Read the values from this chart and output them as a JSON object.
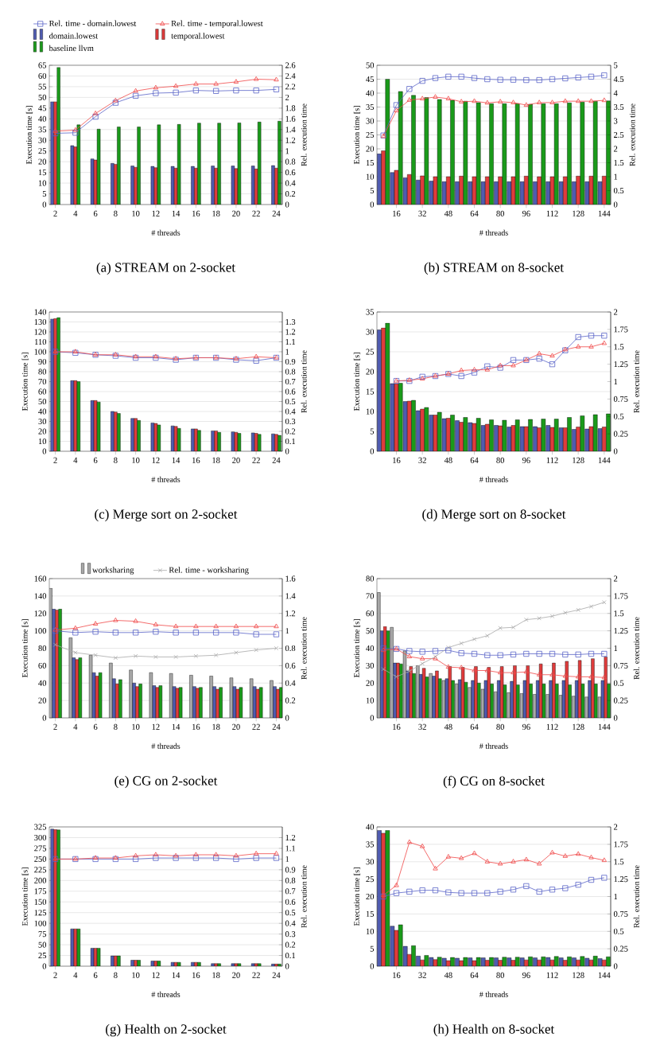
{
  "chart_data": [
    {
      "type": "bar",
      "title": "(a) STREAM on 2-socket",
      "xlabel": "# threads",
      "ylabel": "Execution time [s]",
      "y2label": "Rel. execution time",
      "legend": "top left",
      "grid": "y",
      "x": [
        2,
        4,
        6,
        8,
        10,
        12,
        14,
        16,
        18,
        20,
        22,
        24
      ],
      "xlim": [
        1.4,
        24.6
      ],
      "xticks": [
        2,
        4,
        6,
        8,
        10,
        12,
        14,
        16,
        18,
        20,
        22,
        24
      ],
      "ylim": [
        0,
        65
      ],
      "yticks": [
        0,
        5,
        10,
        15,
        20,
        25,
        30,
        35,
        40,
        45,
        50,
        55,
        60,
        65
      ],
      "y2lim": [
        0,
        2.6
      ],
      "y2ticks": [
        0,
        0.2,
        0.4,
        0.6,
        0.8,
        1,
        1.2,
        1.4,
        1.6,
        1.8,
        2,
        2.2,
        2.4,
        2.6
      ],
      "series": [
        {
          "name": "Rel. time - domain.lowest",
          "type": "line",
          "axis": "y2",
          "marker": "square",
          "color": "#5a64c8",
          "values": [
            1.33,
            1.34,
            1.64,
            1.9,
            2.03,
            2.08,
            2.09,
            2.13,
            2.12,
            2.13,
            2.13,
            2.15
          ]
        },
        {
          "name": "Rel. time - temporal.lowest",
          "type": "line",
          "axis": "y2",
          "marker": "triangle",
          "color": "#f04848",
          "values": [
            1.37,
            1.39,
            1.7,
            1.94,
            2.12,
            2.18,
            2.21,
            2.25,
            2.25,
            2.29,
            2.34,
            2.33
          ]
        },
        {
          "name": "domain.lowest",
          "color": "#4f5bb0",
          "values": [
            48,
            27.5,
            21.3,
            19.2,
            18,
            17.8,
            17.8,
            17.8,
            18,
            18,
            18,
            18.2
          ]
        },
        {
          "name": "temporal.lowest",
          "color": "#e03c3c",
          "values": [
            48,
            26.9,
            20.8,
            18.8,
            17.4,
            17.2,
            17,
            17,
            17,
            16.8,
            16.6,
            17
          ]
        },
        {
          "name": "baseline llvm",
          "color": "#1a9a1a",
          "values": [
            64,
            37.2,
            35.2,
            36.2,
            36.2,
            37.2,
            37.4,
            38,
            38,
            38.1,
            38.5,
            38.9
          ]
        }
      ]
    },
    {
      "type": "bar",
      "title": "(b) STREAM on 8-socket",
      "xlabel": "# threads",
      "ylabel": "Execution time [s]",
      "y2label": "Rel. execution time",
      "grid": "y",
      "x": [
        8,
        16,
        24,
        32,
        40,
        48,
        56,
        64,
        72,
        80,
        88,
        96,
        104,
        112,
        120,
        128,
        136,
        144
      ],
      "xlim": [
        4,
        148
      ],
      "xticks": [
        16,
        32,
        48,
        64,
        80,
        96,
        112,
        128,
        144
      ],
      "ylim": [
        0,
        50
      ],
      "yticks": [
        0,
        5,
        10,
        15,
        20,
        25,
        30,
        35,
        40,
        45,
        50
      ],
      "y2lim": [
        0,
        5
      ],
      "y2ticks": [
        0,
        0.5,
        1,
        1.5,
        2,
        2.5,
        3,
        3.5,
        4,
        4.5,
        5
      ],
      "series": [
        {
          "color": "#4f5bb0",
          "values": [
            18.2,
            11.5,
            9.6,
            8.8,
            8.4,
            8.2,
            8.2,
            8.2,
            8.2,
            8.2,
            8.2,
            8.2,
            8.2,
            8.2,
            8.2,
            8.2,
            8.2,
            8.2
          ]
        },
        {
          "color": "#e03c3c",
          "values": [
            19.3,
            12.3,
            10.8,
            10.3,
            10,
            10,
            10.2,
            10,
            10,
            10,
            10,
            10.2,
            10,
            10,
            10,
            10.2,
            10.2,
            10.2
          ]
        },
        {
          "color": "#1a9a1a",
          "values": [
            45,
            40.6,
            39.2,
            38.4,
            37.7,
            37.4,
            37.1,
            36.6,
            36.2,
            36.2,
            36.2,
            36,
            36.2,
            36.2,
            36.5,
            36.8,
            37.1,
            37.2
          ]
        },
        {
          "type": "line",
          "axis": "y2",
          "marker": "square",
          "color": "#5a64c8",
          "values": [
            2.48,
            3.57,
            4.15,
            4.44,
            4.54,
            4.59,
            4.59,
            4.54,
            4.5,
            4.48,
            4.48,
            4.47,
            4.47,
            4.5,
            4.53,
            4.56,
            4.59,
            4.64
          ]
        },
        {
          "type": "line",
          "axis": "y2",
          "marker": "triangle",
          "color": "#f04848",
          "values": [
            2.45,
            3.37,
            3.75,
            3.8,
            3.86,
            3.8,
            3.69,
            3.71,
            3.65,
            3.69,
            3.66,
            3.57,
            3.66,
            3.66,
            3.71,
            3.71,
            3.71,
            3.74
          ]
        }
      ]
    },
    {
      "type": "bar",
      "title": "(c) Merge sort on 2-socket",
      "xlabel": "# threads",
      "ylabel": "Execution time [s]",
      "y2label": "Rel. execution time",
      "grid": "y",
      "x": [
        2,
        4,
        6,
        8,
        10,
        12,
        14,
        16,
        18,
        20,
        22,
        24
      ],
      "xlim": [
        1.4,
        24.6
      ],
      "xticks": [
        2,
        4,
        6,
        8,
        10,
        12,
        14,
        16,
        18,
        20,
        22,
        24
      ],
      "ylim": [
        0,
        140
      ],
      "yticks": [
        0,
        10,
        20,
        30,
        40,
        50,
        60,
        70,
        80,
        90,
        100,
        110,
        120,
        130,
        140
      ],
      "y2lim": [
        0,
        1.4
      ],
      "y2ticks": [
        0,
        0.1,
        0.2,
        0.3,
        0.4,
        0.5,
        0.6,
        0.7,
        0.8,
        0.9,
        1,
        1.1,
        1.2,
        1.3
      ],
      "series": [
        {
          "color": "#4f5bb0",
          "values": [
            133,
            71,
            51,
            40,
            33,
            28.5,
            25.5,
            22.5,
            20.5,
            19.5,
            18.5,
            17.5
          ]
        },
        {
          "color": "#e03c3c",
          "values": [
            133.5,
            71,
            51,
            39.5,
            33,
            28,
            25,
            22.5,
            20.5,
            19,
            18,
            17
          ]
        },
        {
          "color": "#1a9a1a",
          "values": [
            134.5,
            70,
            49.5,
            38,
            31,
            26.5,
            23,
            21,
            19,
            18,
            17,
            16
          ]
        },
        {
          "type": "line",
          "axis": "y2",
          "marker": "square",
          "color": "#5a64c8",
          "values": [
            1,
            0.99,
            0.97,
            0.96,
            0.94,
            0.94,
            0.92,
            0.94,
            0.94,
            0.92,
            0.91,
            0.94
          ]
        },
        {
          "type": "line",
          "axis": "y2",
          "marker": "triangle",
          "color": "#f04848",
          "values": [
            1,
            1,
            0.97,
            0.97,
            0.95,
            0.95,
            0.93,
            0.94,
            0.94,
            0.93,
            0.95,
            0.94
          ]
        }
      ]
    },
    {
      "type": "bar",
      "title": "(d) Merge sort on 8-socket",
      "xlabel": "# threads",
      "ylabel": "Execution time [s]",
      "y2label": "Rel. execution time",
      "grid": "y",
      "x": [
        8,
        16,
        24,
        32,
        40,
        48,
        56,
        64,
        72,
        80,
        88,
        96,
        104,
        112,
        120,
        128,
        136,
        144
      ],
      "xlim": [
        4,
        148
      ],
      "xticks": [
        16,
        32,
        48,
        64,
        80,
        96,
        112,
        128,
        144
      ],
      "ylim": [
        0,
        35
      ],
      "yticks": [
        0,
        5,
        10,
        15,
        20,
        25,
        30,
        35
      ],
      "y2lim": [
        0,
        2
      ],
      "y2ticks": [
        0,
        0.25,
        0.5,
        0.75,
        1,
        1.25,
        1.5,
        1.75,
        2
      ],
      "series": [
        {
          "color": "#4f5bb0",
          "values": [
            30.5,
            17,
            12.5,
            10.2,
            9.1,
            8.2,
            7.7,
            7.2,
            6.5,
            6.5,
            6.1,
            6.2,
            6.2,
            6.5,
            5.9,
            5.5,
            5.6,
            5.7
          ]
        },
        {
          "color": "#e03c3c",
          "values": [
            31,
            17,
            12.6,
            10.6,
            9.1,
            8.3,
            7.3,
            7,
            6.8,
            6.4,
            6.5,
            6.2,
            5.9,
            6,
            5.9,
            6.1,
            6.2,
            6.1
          ]
        },
        {
          "color": "#1a9a1a",
          "values": [
            32.2,
            17.1,
            12.8,
            11,
            9.8,
            9.1,
            8.5,
            8.3,
            7.9,
            7.8,
            7.9,
            8,
            8.1,
            8.1,
            8.5,
            8.9,
            9.2,
            9.4
          ]
        },
        {
          "type": "line",
          "axis": "y2",
          "marker": "square",
          "color": "#5a64c8",
          "values": [
            null,
            1.01,
            1.01,
            1.07,
            1.08,
            1.11,
            1.08,
            1.13,
            1.22,
            1.2,
            1.31,
            1.31,
            1.33,
            1.25,
            1.45,
            1.64,
            1.66,
            1.66
          ]
        },
        {
          "type": "line",
          "axis": "y2",
          "marker": "triangle",
          "color": "#f04848",
          "values": [
            null,
            1.01,
            1.02,
            1.04,
            1.08,
            1.11,
            1.16,
            1.17,
            1.17,
            1.23,
            1.23,
            1.31,
            1.4,
            1.37,
            1.46,
            1.5,
            1.5,
            1.55
          ]
        }
      ]
    },
    {
      "type": "bar",
      "title": "(e) CG on 2-socket",
      "xlabel": "# threads",
      "ylabel": "Execution time [s]",
      "y2label": "Rel. execution time",
      "legend": "top",
      "grid": "y",
      "x": [
        2,
        4,
        6,
        8,
        10,
        12,
        14,
        16,
        18,
        20,
        22,
        24
      ],
      "xlim": [
        1.4,
        24.6
      ],
      "xticks": [
        2,
        4,
        6,
        8,
        10,
        12,
        14,
        16,
        18,
        20,
        22,
        24
      ],
      "ylim": [
        0,
        160
      ],
      "yticks": [
        0,
        20,
        40,
        60,
        80,
        100,
        120,
        140,
        160
      ],
      "y2lim": [
        0,
        1.6
      ],
      "y2ticks": [
        0,
        0.2,
        0.4,
        0.6,
        0.8,
        1,
        1.2,
        1.4,
        1.6
      ],
      "series": [
        {
          "name": "worksharing",
          "color": "#a8a8a8",
          "values": [
            149,
            92,
            72,
            63,
            55,
            52,
            51,
            49,
            48,
            46,
            45,
            43
          ]
        },
        {
          "color": "#4f5bb0",
          "values": [
            125,
            69,
            52,
            45,
            40,
            37,
            36,
            36,
            36,
            36,
            36,
            36
          ]
        },
        {
          "color": "#e03c3c",
          "values": [
            124,
            67,
            48,
            39,
            36,
            35,
            34,
            34,
            33,
            33,
            33,
            33
          ]
        },
        {
          "color": "#1a9a1a",
          "values": [
            125,
            69,
            52,
            44,
            39,
            37,
            35,
            35,
            35,
            35,
            35,
            35
          ]
        },
        {
          "type": "line",
          "axis": "y2",
          "marker": "square",
          "color": "#5a64c8",
          "values": [
            1,
            0.98,
            0.99,
            0.98,
            0.98,
            0.99,
            0.98,
            0.98,
            0.98,
            0.98,
            0.96,
            0.96
          ]
        },
        {
          "type": "line",
          "axis": "y2",
          "marker": "triangle",
          "color": "#f04848",
          "values": [
            1.01,
            1.03,
            1.08,
            1.12,
            1.11,
            1.07,
            1.05,
            1.05,
            1.05,
            1.05,
            1.05,
            1.05
          ]
        },
        {
          "name": "Rel. time - worksharing",
          "type": "line",
          "axis": "y2",
          "marker": "cross",
          "color": "#a8a8a8",
          "values": [
            0.84,
            0.75,
            0.72,
            0.69,
            0.71,
            0.7,
            0.7,
            0.71,
            0.72,
            0.75,
            0.78,
            0.8
          ]
        }
      ]
    },
    {
      "type": "bar",
      "title": "(f) CG on 8-socket",
      "xlabel": "# threads",
      "ylabel": "Execution time [s]",
      "y2label": "Rel. execution time",
      "grid": "y",
      "x": [
        8,
        16,
        24,
        32,
        40,
        48,
        56,
        64,
        72,
        80,
        88,
        96,
        104,
        112,
        120,
        128,
        136,
        144
      ],
      "xlim": [
        4,
        148
      ],
      "xticks": [
        16,
        32,
        48,
        64,
        80,
        96,
        112,
        128,
        144
      ],
      "ylim": [
        0,
        80
      ],
      "yticks": [
        0,
        10,
        20,
        30,
        40,
        50,
        60,
        70,
        80
      ],
      "y2lim": [
        0,
        2
      ],
      "y2ticks": [
        0,
        0.25,
        0.5,
        0.75,
        1,
        1.25,
        1.5,
        1.75,
        2
      ],
      "series": [
        {
          "color": "#a8a8a8",
          "values": [
            72,
            52,
            38.5,
            30,
            25.5,
            21.5,
            19.5,
            17.5,
            16.5,
            15,
            14.5,
            14,
            13.5,
            13.5,
            13,
            12.5,
            12,
            12
          ]
        },
        {
          "color": "#4f5bb0",
          "values": [
            50,
            31.5,
            27,
            25,
            24,
            22.5,
            22,
            21.5,
            21.5,
            21.5,
            21,
            21.5,
            21.5,
            21.5,
            21.5,
            21.5,
            21.5,
            21.5
          ]
        },
        {
          "color": "#e03c3c",
          "values": [
            52.5,
            31.5,
            29.5,
            28.5,
            27,
            29.5,
            29,
            29.5,
            29,
            29.5,
            30,
            30,
            31,
            31.5,
            32.5,
            33,
            34,
            35
          ]
        },
        {
          "color": "#1a9a1a",
          "values": [
            50,
            31,
            25.5,
            23.5,
            22.5,
            21.5,
            20.5,
            20,
            19.5,
            19,
            19,
            19.5,
            19.5,
            19.5,
            19,
            19.5,
            19.5,
            19.5
          ]
        },
        {
          "type": "line",
          "axis": "y2",
          "marker": "square",
          "color": "#5a64c8",
          "values": [
            1,
            0.99,
            0.96,
            0.95,
            0.96,
            0.97,
            0.93,
            0.92,
            0.9,
            0.9,
            0.91,
            0.92,
            0.92,
            0.92,
            0.91,
            0.91,
            0.92,
            0.92
          ]
        },
        {
          "type": "line",
          "axis": "y2",
          "marker": "triangle",
          "color": "#f04848",
          "values": [
            0.97,
            0.99,
            0.88,
            0.85,
            0.85,
            0.73,
            0.72,
            0.68,
            0.68,
            0.65,
            0.65,
            0.66,
            0.62,
            0.62,
            0.6,
            0.59,
            0.59,
            0.58
          ]
        },
        {
          "type": "line",
          "axis": "y2",
          "marker": "cross",
          "color": "#a8a8a8",
          "values": [
            0.7,
            0.59,
            0.67,
            0.78,
            0.88,
            1.01,
            1.07,
            1.13,
            1.18,
            1.29,
            1.3,
            1.41,
            1.43,
            1.46,
            1.51,
            1.55,
            1.6,
            1.66
          ]
        }
      ]
    },
    {
      "type": "bar",
      "title": "(g) Health on 2-socket",
      "xlabel": "# threads",
      "ylabel": "Execution time [s]",
      "y2label": "Rel. execution time",
      "grid": "y",
      "x": [
        2,
        4,
        6,
        8,
        10,
        12,
        14,
        16,
        18,
        20,
        22,
        24
      ],
      "xlim": [
        1.4,
        24.6
      ],
      "xticks": [
        2,
        4,
        6,
        8,
        10,
        12,
        14,
        16,
        18,
        20,
        22,
        24
      ],
      "ylim": [
        0,
        325
      ],
      "yticks": [
        0,
        25,
        50,
        75,
        100,
        125,
        150,
        175,
        200,
        225,
        250,
        275,
        300,
        325
      ],
      "y2lim": [
        0,
        1.3
      ],
      "y2ticks": [
        0,
        0.1,
        0.2,
        0.3,
        0.4,
        0.5,
        0.6,
        0.7,
        0.8,
        0.9,
        1,
        1.1,
        1.2
      ],
      "series": [
        {
          "color": "#4f5bb0",
          "values": [
            320,
            87,
            42,
            24,
            14,
            12,
            9,
            9,
            6,
            6,
            6,
            5
          ]
        },
        {
          "color": "#e03c3c",
          "values": [
            319,
            87,
            42,
            24,
            14,
            12,
            9,
            9,
            6,
            6,
            6,
            5
          ]
        },
        {
          "color": "#1a9a1a",
          "values": [
            318,
            87,
            42,
            24,
            14,
            12,
            9,
            9,
            6,
            6,
            6,
            5
          ]
        },
        {
          "type": "line",
          "axis": "y2",
          "marker": "square",
          "color": "#5a64c8",
          "values": [
            1,
            1,
            1,
            1,
            1,
            1.01,
            1.01,
            1.01,
            1.01,
            1,
            1.01,
            1.01
          ]
        },
        {
          "type": "line",
          "axis": "y2",
          "marker": "triangle",
          "color": "#f04848",
          "values": [
            1,
            1,
            1.01,
            1.01,
            1.03,
            1.04,
            1.03,
            1.04,
            1.04,
            1.03,
            1.05,
            1.05
          ]
        }
      ]
    },
    {
      "type": "bar",
      "title": "(h) Health on 8-socket",
      "xlabel": "# threads",
      "ylabel": "Execution time [s]",
      "y2label": "Rel. execution time",
      "grid": "y",
      "x": [
        8,
        16,
        24,
        32,
        40,
        48,
        56,
        64,
        72,
        80,
        88,
        96,
        104,
        112,
        120,
        128,
        136,
        144
      ],
      "xlim": [
        4,
        148
      ],
      "xticks": [
        16,
        32,
        48,
        64,
        80,
        96,
        112,
        128,
        144
      ],
      "ylim": [
        0,
        40
      ],
      "yticks": [
        0,
        5,
        10,
        15,
        20,
        25,
        30,
        35,
        40
      ],
      "y2lim": [
        0,
        2
      ],
      "y2ticks": [
        0,
        0.25,
        0.5,
        0.75,
        1,
        1.25,
        1.5,
        1.75,
        2
      ],
      "series": [
        {
          "color": "#4f5bb0",
          "values": [
            39,
            11.5,
            5.7,
            2.9,
            2.5,
            2.3,
            2.3,
            2.4,
            2.4,
            2.4,
            2.4,
            2.4,
            2.4,
            2.5,
            2.4,
            2.4,
            2.3,
            2.2
          ]
        },
        {
          "color": "#e03c3c",
          "values": [
            38.2,
            10.3,
            3.4,
            1.8,
            1.9,
            1.6,
            1.6,
            1.6,
            1.7,
            1.7,
            1.7,
            1.8,
            1.8,
            1.8,
            1.7,
            1.8,
            1.8,
            1.8
          ]
        },
        {
          "color": "#1a9a1a",
          "values": [
            39,
            11.9,
            5.9,
            3.1,
            2.6,
            2.5,
            2.5,
            2.5,
            2.5,
            2.6,
            2.6,
            2.7,
            2.7,
            2.8,
            2.7,
            2.8,
            2.9,
            2.7
          ]
        },
        {
          "type": "line",
          "axis": "y2",
          "marker": "square",
          "color": "#5a64c8",
          "values": [
            1,
            1.05,
            1.07,
            1.09,
            1.09,
            1.06,
            1.05,
            1.05,
            1.05,
            1.07,
            1.1,
            1.15,
            1.07,
            1.1,
            1.12,
            1.17,
            1.24,
            1.27
          ]
        },
        {
          "type": "line",
          "axis": "y2",
          "marker": "triangle",
          "color": "#f04848",
          "values": [
            1.02,
            1.16,
            1.78,
            1.72,
            1.4,
            1.57,
            1.55,
            1.62,
            1.5,
            1.47,
            1.5,
            1.53,
            1.47,
            1.63,
            1.58,
            1.61,
            1.56,
            1.52
          ]
        }
      ]
    }
  ]
}
